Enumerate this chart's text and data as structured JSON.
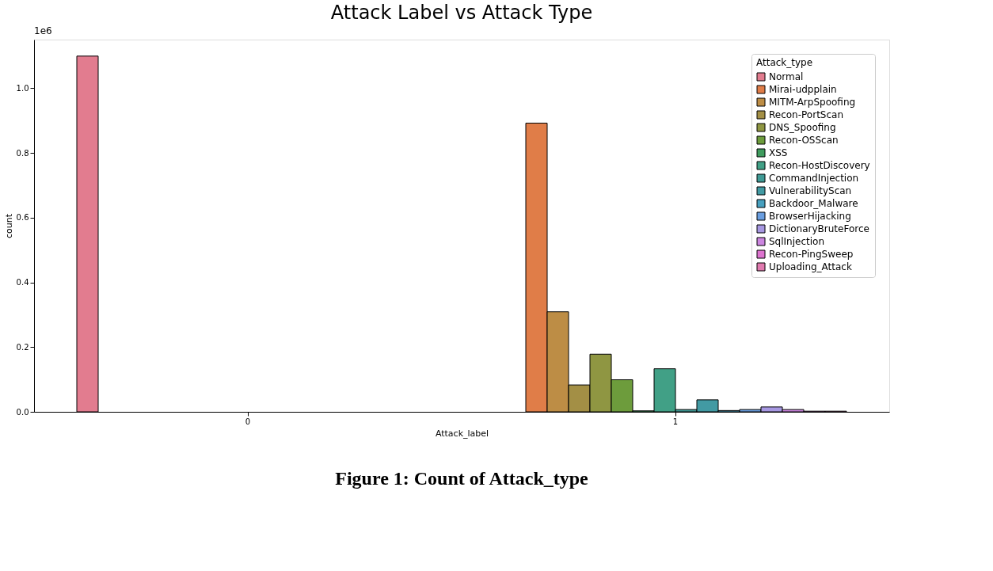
{
  "chart_data": {
    "type": "bar",
    "title": "Attack Label vs Attack Type",
    "xlabel": "Attack_label",
    "ylabel": "count",
    "legend_title": "Attack_type",
    "categories": [
      "0",
      "1"
    ],
    "series": [
      {
        "name": "Normal",
        "color": "#e27c8f",
        "values": [
          1.099,
          null
        ]
      },
      {
        "name": "Mirai-udpplain",
        "color": "#e07d48",
        "values": [
          null,
          0.892
        ]
      },
      {
        "name": "MITM-ArpSpoofing",
        "color": "#bd8d45",
        "values": [
          null,
          0.309
        ]
      },
      {
        "name": "Recon-PortScan",
        "color": "#a38f45",
        "values": [
          null,
          0.083
        ]
      },
      {
        "name": "DNS_Spoofing",
        "color": "#8f9642",
        "values": [
          null,
          0.178
        ]
      },
      {
        "name": "Recon-OSScan",
        "color": "#6d9c3c",
        "values": [
          null,
          0.099
        ]
      },
      {
        "name": "XSS",
        "color": "#3f9c5e",
        "values": [
          null,
          0.003
        ]
      },
      {
        "name": "Recon-HostDiscovery",
        "color": "#41a086",
        "values": [
          null,
          0.133
        ]
      },
      {
        "name": "CommandInjection",
        "color": "#3f9a95",
        "values": [
          null,
          0.007
        ]
      },
      {
        "name": "VulnerabilityScan",
        "color": "#429aa3",
        "values": [
          null,
          0.037
        ]
      },
      {
        "name": "Backdoor_Malware",
        "color": "#47a0bf",
        "values": [
          null,
          0.004
        ]
      },
      {
        "name": "BrowserHijacking",
        "color": "#6a9ee0",
        "values": [
          null,
          0.007
        ]
      },
      {
        "name": "DictionaryBruteForce",
        "color": "#a798e2",
        "values": [
          null,
          0.015
        ]
      },
      {
        "name": "SqlInjection",
        "color": "#cc86e0",
        "values": [
          null,
          0.007
        ]
      },
      {
        "name": "Recon-PingSweep",
        "color": "#dd74cf",
        "values": [
          null,
          0.002
        ]
      },
      {
        "name": "Uploading_Attack",
        "color": "#e07aaf",
        "values": [
          null,
          0.002
        ]
      }
    ],
    "ylim": [
      0,
      1.15
    ],
    "yticks": [
      {
        "value": 0,
        "label": "0.0"
      },
      0.2,
      0.4,
      0.6,
      0.8,
      {
        "value": 1,
        "label": "1.0"
      }
    ],
    "grid": false,
    "legend": "top right",
    "annotations": [
      "1e6",
      "Figure 1: Count of Attack_type"
    ]
  }
}
